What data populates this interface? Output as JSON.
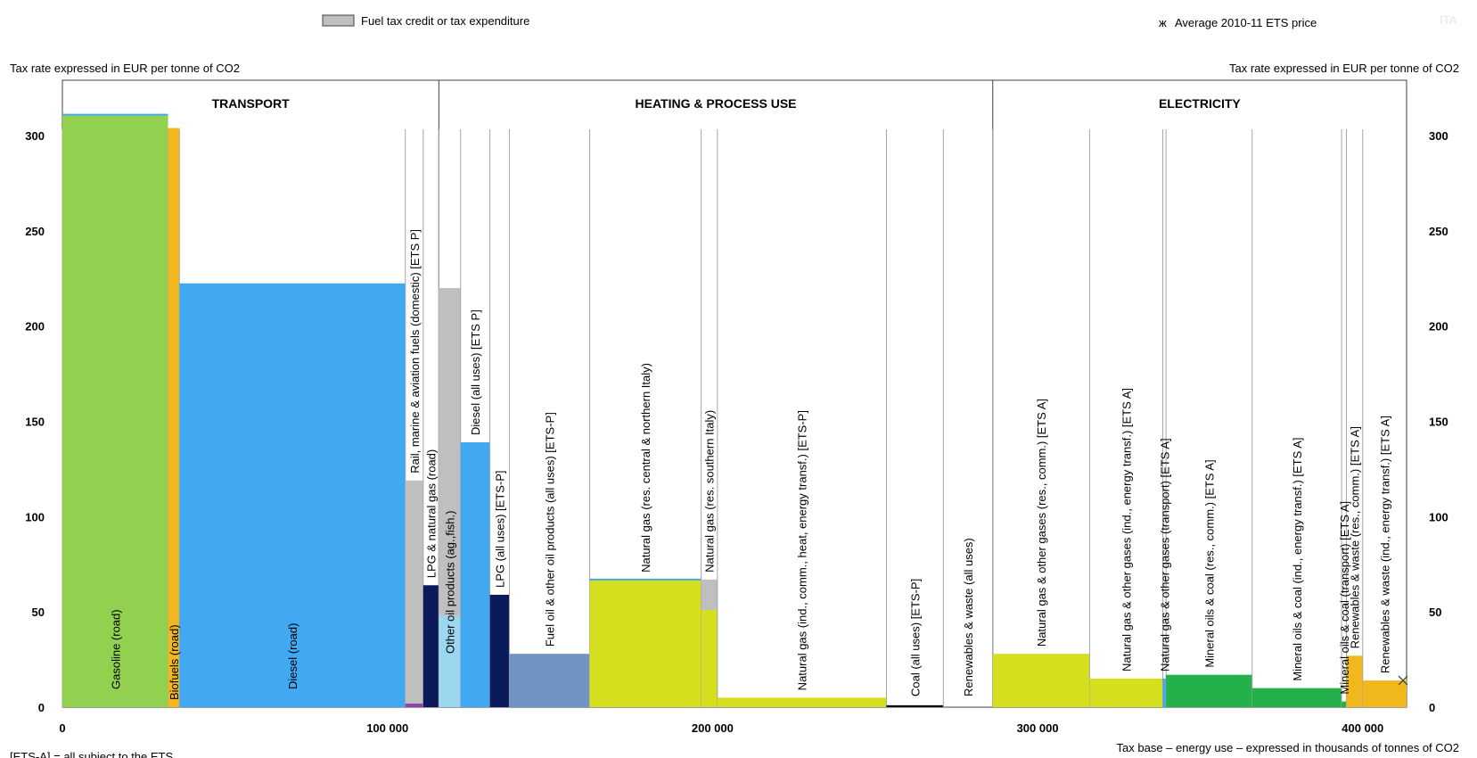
{
  "chart_data": {
    "type": "bar",
    "variable_width": true,
    "ylabel_left": "Tax rate expressed in EUR per tonne of CO2",
    "ylabel_right": "Tax rate expressed in EUR per tonne of CO2",
    "xlabel": "Tax base – energy use – expressed in thousands of tonnes of CO2",
    "ylim": [
      0,
      330
    ],
    "xlim": [
      0,
      413500
    ],
    "yticks": [
      "0",
      "50",
      "100",
      "150",
      "200",
      "250",
      "300"
    ],
    "ytick_values": [
      0,
      50,
      100,
      150,
      200,
      250,
      300
    ],
    "xticks": [
      "0",
      "100 000",
      "200 000",
      "300 000",
      "400 000"
    ],
    "xtick_values": [
      0,
      100000,
      200000,
      300000,
      400000
    ],
    "legend": {
      "credit_label": "Fuel tax credit or tax expenditure",
      "ets_label": "Average 2010-11 ETS price",
      "ets_marker": "ж",
      "country_code": "ITA"
    },
    "footnote": "[ETS-A] = all subject to the ETS",
    "ets_price": 14,
    "sections": [
      {
        "label": "TRANSPORT",
        "x0": 0,
        "x1": 115800
      },
      {
        "label": "HEATING & PROCESS USE",
        "x0": 115800,
        "x1": 286200
      },
      {
        "label": "ELECTRICITY",
        "x0": 286200,
        "x1": 413500
      }
    ],
    "bars": [
      {
        "label": "Gasoline (road)",
        "x0": 0,
        "x1": 32500,
        "value": 311,
        "credit": 0,
        "color": "#92d050",
        "line": true
      },
      {
        "label": "Biofuels (road)",
        "x0": 32500,
        "x1": 36000,
        "value": 304,
        "credit": 0,
        "color": "#f0b81c",
        "line": false
      },
      {
        "label": "Diesel (road)",
        "x0": 36000,
        "x1": 105500,
        "value": 222,
        "credit": 0,
        "color": "#41a9f1",
        "line": true
      },
      {
        "label": "Rail, marine & aviation fuels (domestic) [ETS P]",
        "x0": 105500,
        "x1": 111000,
        "value": 2,
        "credit": 117,
        "color": "#8e44ad",
        "line": false
      },
      {
        "label": "LPG & natural gas (road)",
        "x0": 111000,
        "x1": 115800,
        "value": 64,
        "credit": 0,
        "color": "#0a1a5a",
        "line": false
      },
      {
        "label": "Other oil products (ag.,fish.)",
        "x0": 115800,
        "x1": 122500,
        "value": 48,
        "credit": 172,
        "color": "#9bd7ee",
        "line": false
      },
      {
        "label": "Diesel (all uses) [ETS P]",
        "x0": 122500,
        "x1": 131500,
        "value": 139,
        "credit": 0,
        "color": "#41a9f1",
        "line": false
      },
      {
        "label": "LPG (all uses) [ETS-P]",
        "x0": 131500,
        "x1": 137500,
        "value": 59,
        "credit": 0,
        "color": "#0a1a5a",
        "line": false
      },
      {
        "label": "Fuel oil & other oil products (all uses) [ETS-P]",
        "x0": 137500,
        "x1": 162200,
        "value": 28,
        "credit": 0,
        "color": "#7094c2",
        "line": false
      },
      {
        "label": "Natural gas (res. central & northern Italy)",
        "x0": 162200,
        "x1": 196500,
        "value": 67,
        "credit": 0,
        "color": "#d6df1e",
        "line": true
      },
      {
        "label": "Natural gas (res. southern Italy)",
        "x0": 196500,
        "x1": 201500,
        "value": 51,
        "credit": 16,
        "color": "#d6df1e",
        "line": false
      },
      {
        "label": "Natural gas (ind., comm., heat, energy transf.) [ETS-P]",
        "x0": 201500,
        "x1": 253500,
        "value": 5,
        "credit": 0,
        "color": "#d6df1e",
        "line": false
      },
      {
        "label": "Coal (all uses) [ETS-P]",
        "x0": 253500,
        "x1": 271000,
        "value": 1,
        "credit": 0,
        "color": "#000000",
        "line": false
      },
      {
        "label": "Renewables & waste (all uses)",
        "x0": 271000,
        "x1": 286200,
        "value": 0,
        "credit": 0,
        "color": "#ffffff",
        "line": false
      },
      {
        "label": "Natural gas & other gases (res., comm.) [ETS A]",
        "x0": 286200,
        "x1": 316000,
        "value": 28,
        "credit": 0,
        "color": "#d6df1e",
        "line": false
      },
      {
        "label": "Natural gas & other gases (ind., energy transf.) [ETS A]",
        "x0": 316000,
        "x1": 338500,
        "value": 15,
        "credit": 0,
        "color": "#d6df1e",
        "line": false
      },
      {
        "label": "Natural gas & other gases (transport) [ETS A]",
        "x0": 338500,
        "x1": 339500,
        "value": 15,
        "credit": 0,
        "color": "#41a9f1",
        "line": false
      },
      {
        "label": "Mineral oils & coal (res., comm.) [ETS A]",
        "x0": 339500,
        "x1": 366000,
        "value": 17,
        "credit": 0,
        "color": "#24b04b",
        "line": false
      },
      {
        "label": "Mineral oils & coal (ind., energy transf.) [ETS A]",
        "x0": 366000,
        "x1": 393500,
        "value": 10,
        "credit": 0,
        "color": "#24b04b",
        "line": false
      },
      {
        "label": "Mineral oils & coal (transport) [ETS A]",
        "x0": 393500,
        "x1": 395000,
        "value": 3,
        "credit": 0,
        "color": "#24b04b",
        "line": false
      },
      {
        "label": "Renewables & waste (res., comm.) [ETS A]",
        "x0": 395000,
        "x1": 400000,
        "value": 27,
        "credit": 0,
        "color": "#f0b81c",
        "line": false
      },
      {
        "label": "Renewables & waste (ind., energy transf.) [ETS A]",
        "x0": 400000,
        "x1": 413500,
        "value": 14,
        "credit": 0,
        "color": "#f0b81c",
        "line": false
      }
    ]
  },
  "colors": {
    "credit": "#bfbfbf",
    "divider": "#a6a6a6",
    "axis": "#000000",
    "line_accent": "#41a9f1"
  }
}
